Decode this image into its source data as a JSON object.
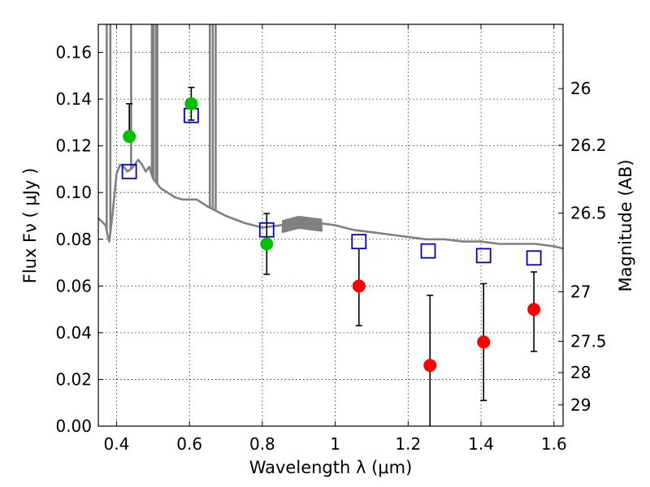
{
  "chart_data": {
    "type": "scatter",
    "xlabel": "Wavelength  λ (μm)",
    "ylabel": "Flux  Fν  ( μJy )",
    "y2label": "Magnitude (AB)",
    "xlim": [
      0.35,
      1.625
    ],
    "ylim": [
      0.0,
      0.172
    ],
    "xticks": [
      0.4,
      0.6,
      0.8,
      1.0,
      1.2,
      1.4,
      1.6
    ],
    "xtick_labels": [
      "0.4",
      "0.6",
      "0.8",
      "1",
      "1.2",
      "1.4",
      "1.6"
    ],
    "yticks": [
      0.0,
      0.02,
      0.04,
      0.06,
      0.08,
      0.1,
      0.12,
      0.14,
      0.16
    ],
    "ytick_labels": [
      "0.00",
      "0.02",
      "0.04",
      "0.06",
      "0.08",
      "0.10",
      "0.12",
      "0.14",
      "0.16"
    ],
    "right_ticks": [
      {
        "label": "26",
        "flux": 0.1445
      },
      {
        "label": "26.2",
        "flux": 0.1202
      },
      {
        "label": "26.5",
        "flux": 0.0912
      },
      {
        "label": "27",
        "flux": 0.0575
      },
      {
        "label": "27.5",
        "flux": 0.0363
      },
      {
        "label": "28",
        "flux": 0.0229
      },
      {
        "label": "29",
        "flux": 0.0091
      }
    ],
    "grid": true,
    "colors": {
      "template": "#808080",
      "model_points": "#0000cc",
      "detections": "#00c000",
      "upper_limits": "#ff0000",
      "errorbars": "#000000"
    },
    "template_spectrum": {
      "x": [
        0.35,
        0.37,
        0.375,
        0.38,
        0.39,
        0.4,
        0.41,
        0.42,
        0.43,
        0.44,
        0.45,
        0.46,
        0.47,
        0.48,
        0.49,
        0.5,
        0.52,
        0.54,
        0.56,
        0.58,
        0.6,
        0.62,
        0.65,
        0.7,
        0.75,
        0.8,
        0.85,
        0.9,
        0.95,
        1.0,
        1.05,
        1.1,
        1.15,
        1.2,
        1.25,
        1.3,
        1.35,
        1.4,
        1.45,
        1.5,
        1.55,
        1.6,
        1.625
      ],
      "y": [
        0.089,
        0.086,
        0.082,
        0.079,
        0.092,
        0.108,
        0.112,
        0.111,
        0.109,
        0.11,
        0.112,
        0.114,
        0.112,
        0.109,
        0.111,
        0.106,
        0.102,
        0.1,
        0.098,
        0.097,
        0.097,
        0.097,
        0.094,
        0.09,
        0.087,
        0.085,
        0.086,
        0.088,
        0.087,
        0.086,
        0.084,
        0.083,
        0.082,
        0.081,
        0.08,
        0.08,
        0.079,
        0.079,
        0.078,
        0.078,
        0.078,
        0.077,
        0.076
      ]
    },
    "emission_lines": [
      0.373,
      0.383,
      0.44,
      0.497,
      0.502,
      0.509,
      0.512,
      0.656,
      0.664,
      0.672
    ],
    "model_points": {
      "x": [
        0.435,
        0.605,
        0.812,
        1.065,
        1.255,
        1.407,
        1.545
      ],
      "y": [
        0.109,
        0.133,
        0.084,
        0.079,
        0.075,
        0.073,
        0.072
      ]
    },
    "detections": {
      "x": [
        0.435,
        0.605,
        0.812
      ],
      "y": [
        0.124,
        0.138,
        0.078
      ],
      "yerr_low": [
        0.124,
        0.131,
        0.065
      ],
      "yerr_high": [
        0.138,
        0.145,
        0.091
      ]
    },
    "upper_limits": {
      "x": [
        1.065,
        1.26,
        1.407,
        1.545
      ],
      "y": [
        0.06,
        0.026,
        0.036,
        0.05
      ],
      "yerr_low": [
        0.043,
        0.0,
        0.011,
        0.032
      ],
      "yerr_high": [
        0.076,
        0.056,
        0.061,
        0.066
      ]
    }
  }
}
